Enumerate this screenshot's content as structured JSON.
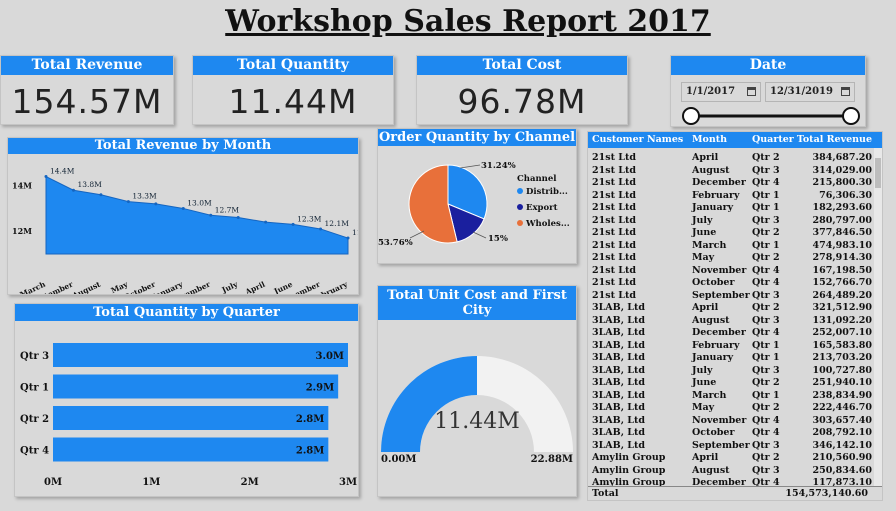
{
  "title": "Workshop Sales Report 2017",
  "kpis": {
    "revenue": {
      "label": "Total Revenue",
      "value": "154.57M"
    },
    "quantity": {
      "label": "Total Quantity",
      "value": "11.44M"
    },
    "cost": {
      "label": "Total Cost",
      "value": "96.78M"
    }
  },
  "date": {
    "label": "Date",
    "start": "1/1/2017",
    "end": "12/31/2019"
  },
  "colors": {
    "accent": "#1e88f0",
    "orange": "#e8703a",
    "navy": "#1a1f9e",
    "gauge_bg": "#f2f2f2"
  },
  "chart_data": [
    {
      "type": "area",
      "title": "Total Revenue by Month",
      "categories": [
        "March",
        "September",
        "August",
        "May",
        "October",
        "January",
        "November",
        "July",
        "April",
        "June",
        "December",
        "February"
      ],
      "values": [
        14.4,
        13.8,
        13.6,
        13.3,
        13.2,
        13.0,
        12.7,
        12.6,
        12.4,
        12.3,
        12.1,
        11.7
      ],
      "data_labels": [
        "14.4M",
        "13.8M",
        "",
        "13.3M",
        "",
        "13.0M",
        "12.7M",
        "",
        "",
        "12.3M",
        "12.1M",
        "11.7M"
      ],
      "y_ticks": [
        "14M",
        "12M"
      ],
      "ylim": [
        11,
        14.6
      ]
    },
    {
      "type": "pie",
      "title": "Order Quantity by Channel",
      "legend_title": "Channel",
      "labels": [
        "Distrib...",
        "Export",
        "Wholes..."
      ],
      "values": [
        31.24,
        15.0,
        53.76
      ],
      "slice_labels": [
        "31.24%",
        "15%",
        "53.76%"
      ]
    },
    {
      "type": "bar",
      "title": "Total Quantity by Quarter",
      "categories": [
        "Qtr 3",
        "Qtr 1",
        "Qtr 2",
        "Qtr 4"
      ],
      "values": [
        3.0,
        2.9,
        2.8,
        2.8
      ],
      "data_labels": [
        "3.0M",
        "2.9M",
        "2.8M",
        "2.8M"
      ],
      "x_ticks": [
        "0M",
        "1M",
        "2M",
        "3M"
      ],
      "xlim": [
        0,
        3
      ]
    },
    {
      "type": "gauge",
      "title": "Total Unit Cost and First City",
      "value": 11.44,
      "value_label": "11.44M",
      "min_label": "0.00M",
      "max_label": "22.88M",
      "min": 0,
      "max": 22.88
    }
  ],
  "table": {
    "headers": [
      "Customer Names",
      "Month",
      "Quarter",
      "Total Revenue"
    ],
    "rows": [
      [
        "21st Ltd",
        "April",
        "Qtr 2",
        "384,687.20"
      ],
      [
        "21st Ltd",
        "August",
        "Qtr 3",
        "314,029.00"
      ],
      [
        "21st Ltd",
        "December",
        "Qtr 4",
        "215,800.30"
      ],
      [
        "21st Ltd",
        "February",
        "Qtr 1",
        "76,306.30"
      ],
      [
        "21st Ltd",
        "January",
        "Qtr 1",
        "182,293.60"
      ],
      [
        "21st Ltd",
        "July",
        "Qtr 3",
        "280,797.00"
      ],
      [
        "21st Ltd",
        "June",
        "Qtr 2",
        "377,846.50"
      ],
      [
        "21st Ltd",
        "March",
        "Qtr 1",
        "474,983.10"
      ],
      [
        "21st Ltd",
        "May",
        "Qtr 2",
        "278,914.30"
      ],
      [
        "21st Ltd",
        "November",
        "Qtr 4",
        "167,198.50"
      ],
      [
        "21st Ltd",
        "October",
        "Qtr 4",
        "152,766.70"
      ],
      [
        "21st Ltd",
        "September",
        "Qtr 3",
        "264,489.20"
      ],
      [
        "3LAB, Ltd",
        "April",
        "Qtr 2",
        "321,512.90"
      ],
      [
        "3LAB, Ltd",
        "August",
        "Qtr 3",
        "131,092.20"
      ],
      [
        "3LAB, Ltd",
        "December",
        "Qtr 4",
        "252,007.10"
      ],
      [
        "3LAB, Ltd",
        "February",
        "Qtr 1",
        "165,583.80"
      ],
      [
        "3LAB, Ltd",
        "January",
        "Qtr 1",
        "213,703.20"
      ],
      [
        "3LAB, Ltd",
        "July",
        "Qtr 3",
        "100,727.80"
      ],
      [
        "3LAB, Ltd",
        "June",
        "Qtr 2",
        "251,940.10"
      ],
      [
        "3LAB, Ltd",
        "March",
        "Qtr 1",
        "238,834.90"
      ],
      [
        "3LAB, Ltd",
        "May",
        "Qtr 2",
        "222,446.70"
      ],
      [
        "3LAB, Ltd",
        "November",
        "Qtr 4",
        "303,657.40"
      ],
      [
        "3LAB, Ltd",
        "October",
        "Qtr 4",
        "208,792.10"
      ],
      [
        "3LAB, Ltd",
        "September",
        "Qtr 3",
        "346,142.10"
      ],
      [
        "Amylin Group",
        "April",
        "Qtr 2",
        "210,560.90"
      ],
      [
        "Amylin Group",
        "August",
        "Qtr 3",
        "250,834.60"
      ],
      [
        "Amylin Group",
        "December",
        "Qtr 4",
        "117,873.10"
      ]
    ],
    "total_label": "Total",
    "total_value": "154,573,140.60"
  }
}
